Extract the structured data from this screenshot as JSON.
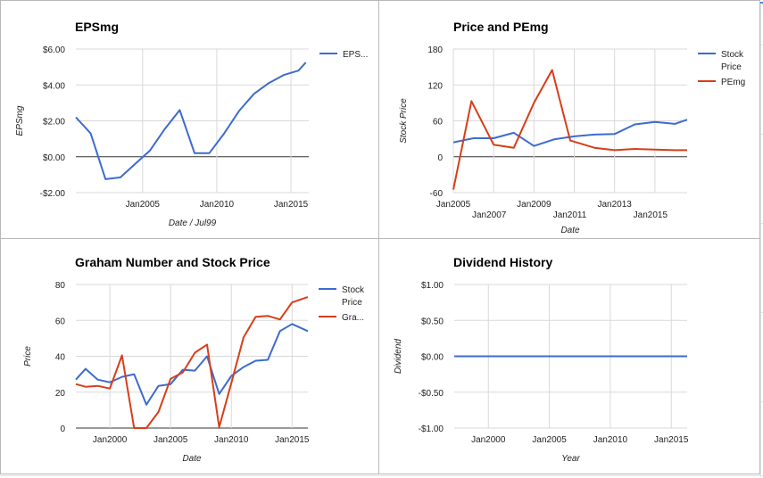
{
  "colors": {
    "blue": "#3c6bcf",
    "red": "#d63e1a"
  },
  "chart_data": [
    {
      "type": "line",
      "title": "EPSmg",
      "xlabel": "Date / Jul99",
      "ylabel": "EPSmg",
      "xlim": [
        2000.5,
        2016.2
      ],
      "ylim": [
        -2,
        6
      ],
      "yticks": [
        -2,
        0,
        2,
        4,
        6
      ],
      "ytick_labels": [
        "-$2.00",
        "$0.00",
        "$2.00",
        "$4.00",
        "$6.00"
      ],
      "xticks": [
        2005,
        2010,
        2015
      ],
      "xtick_labels": [
        "Jan2005",
        "Jan2010",
        "Jan2015"
      ],
      "legend": "right",
      "series": [
        {
          "name": "EPS...",
          "color": "#3c6bcf",
          "x": [
            2000.5,
            2001.5,
            2002.5,
            2003.5,
            2004.5,
            2005.5,
            2006.5,
            2007.5,
            2008.5,
            2009.5,
            2010.5,
            2011.5,
            2012.5,
            2013.5,
            2014.5,
            2015.5,
            2016.0
          ],
          "values": [
            2.2,
            1.3,
            -1.25,
            -1.15,
            -0.4,
            0.35,
            1.55,
            2.6,
            0.2,
            0.2,
            1.3,
            2.55,
            3.5,
            4.1,
            4.55,
            4.8,
            5.25
          ]
        }
      ]
    },
    {
      "type": "line",
      "title": "Price and PEmg",
      "xlabel": "Date",
      "ylabel": "Stock Price",
      "xlim": [
        2005,
        2016.6
      ],
      "ylim": [
        -60,
        180
      ],
      "yticks": [
        -60,
        0,
        60,
        120,
        180
      ],
      "ytick_labels": [
        "-60",
        "0",
        "60",
        "120",
        "180"
      ],
      "xticks": [
        2005,
        2007,
        2009,
        2011,
        2013,
        2015
      ],
      "xtick_labels": [
        "Jan2005",
        "Jan2007",
        "Jan2009",
        "Jan2011",
        "Jan2013",
        "Jan2015"
      ],
      "legend": "right",
      "series": [
        {
          "name": "Stock Price",
          "color": "#3c6bcf",
          "x": [
            2005,
            2006,
            2007,
            2008,
            2009,
            2010,
            2011,
            2012,
            2013,
            2014,
            2015,
            2016,
            2016.6
          ],
          "values": [
            24,
            31,
            31,
            40,
            18,
            29,
            34,
            37,
            38,
            54,
            58,
            55,
            62
          ]
        },
        {
          "name": "PEmg",
          "color": "#d63e1a",
          "x": [
            2005,
            2005.9,
            2007,
            2008,
            2009,
            2009.9,
            2010.8,
            2012,
            2013,
            2014,
            2015,
            2016,
            2016.6
          ],
          "values": [
            -55,
            93,
            20,
            15,
            90,
            145,
            27,
            15,
            11,
            13,
            12,
            11,
            11
          ]
        }
      ]
    },
    {
      "type": "line",
      "title": "Graham Number and Stock Price",
      "xlabel": "Date",
      "ylabel": "Price",
      "xlim": [
        1997.2,
        2016.3
      ],
      "ylim": [
        0,
        80
      ],
      "yticks": [
        0,
        20,
        40,
        60,
        80
      ],
      "ytick_labels": [
        "0",
        "20",
        "40",
        "60",
        "80"
      ],
      "xticks": [
        2000,
        2005,
        2010,
        2015
      ],
      "xtick_labels": [
        "Jan2000",
        "Jan2005",
        "Jan2010",
        "Jan2015"
      ],
      "legend": "right",
      "series": [
        {
          "name": "Stock Price",
          "color": "#3c6bcf",
          "x": [
            1997.2,
            1998,
            1999,
            2000,
            2001,
            2002,
            2003,
            2004,
            2005,
            2006,
            2007,
            2008,
            2009,
            2010,
            2011,
            2012,
            2013,
            2014,
            2015,
            2016.3
          ],
          "values": [
            27,
            33,
            27,
            25.5,
            28.5,
            30,
            13,
            23.5,
            24.5,
            32.5,
            32,
            40,
            19,
            29,
            34,
            37.5,
            38,
            54,
            58,
            54
          ]
        },
        {
          "name": "Gra...",
          "color": "#d63e1a",
          "x": [
            1997.2,
            1998,
            1999,
            2000,
            2001,
            2002,
            2003,
            2004,
            2005,
            2006,
            2007,
            2008,
            2009,
            2010,
            2011,
            2012,
            2013,
            2014,
            2015,
            2016.3
          ],
          "values": [
            24.5,
            23,
            23.5,
            22,
            40.5,
            0,
            0,
            9,
            27.5,
            31,
            42,
            46.5,
            0.5,
            25,
            50.5,
            62,
            62.5,
            60.5,
            70,
            73
          ]
        }
      ]
    },
    {
      "type": "line",
      "title": "Dividend History",
      "xlabel": "Year",
      "ylabel": "Dividend",
      "xlim": [
        1997.2,
        2016.3
      ],
      "ylim": [
        -1,
        1
      ],
      "yticks": [
        -1,
        -0.5,
        0,
        0.5,
        1
      ],
      "ytick_labels": [
        "-$1.00",
        "-$0.50",
        "$0.00",
        "$0.50",
        "$1.00"
      ],
      "xticks": [
        2000,
        2005,
        2010,
        2015
      ],
      "xtick_labels": [
        "Jan2000",
        "Jan2005",
        "Jan2010",
        "Jan2015"
      ],
      "series": [
        {
          "color": "#3c6bcf",
          "x": [
            1997.2,
            2016.3
          ],
          "values": [
            0,
            0
          ]
        }
      ]
    }
  ]
}
